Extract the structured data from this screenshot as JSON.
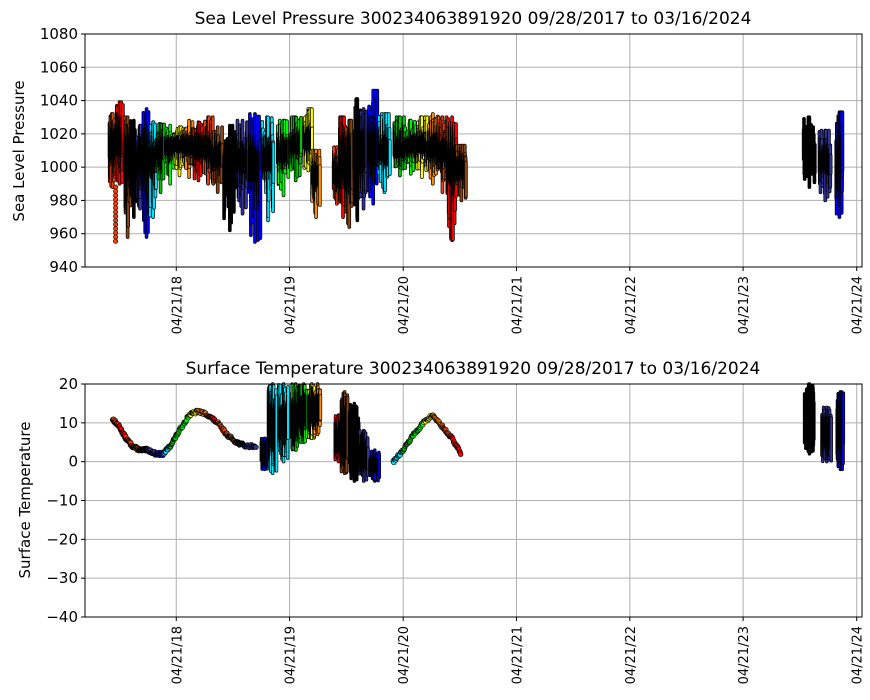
{
  "figure": {
    "background": "#ffffff",
    "grid_color": "#b0b0b0"
  },
  "chart_data": [
    {
      "type": "scatter",
      "title": "Sea Level Pressure 300234063891920  09/28/2017 to 03/16/2024",
      "xlabel": "",
      "ylabel": "Sea Level Pressure",
      "xlim": [
        "2017-07-01",
        "2024-05-08"
      ],
      "ylim": [
        940,
        1080
      ],
      "yticks": [
        940,
        960,
        980,
        1000,
        1020,
        1040,
        1060,
        1080
      ],
      "xticks": [
        "2018-04-21",
        "2019-04-21",
        "2020-04-21",
        "2021-04-21",
        "2022-04-21",
        "2023-04-21",
        "2024-04-21"
      ],
      "xtick_labels": [
        "04/21/18",
        "04/21/19",
        "04/21/20",
        "04/21/21",
        "04/21/22",
        "04/21/23",
        "04/21/24"
      ],
      "grid": true,
      "marker_edge_color": "#000000",
      "color_cycle": [
        "#e8420c",
        "#8b4513",
        "#000000",
        "#333399",
        "#0000ff",
        "#00e5ff",
        "#00c800",
        "#ffff00",
        "#ff8c00",
        "#ff0000"
      ],
      "segments": [
        {
          "x": "2017-09-28",
          "y_min": 988,
          "y_max": 1032,
          "y_mid": 1012,
          "extra_low": 955,
          "color": "#e8420c"
        },
        {
          "x": "2017-10-20",
          "y_min": 990,
          "y_max": 1039,
          "y_mid": 1015,
          "color": "#ff0000"
        },
        {
          "x": "2017-11-15",
          "y_min": 958,
          "y_max": 1030,
          "y_mid": 1008,
          "color": "#8b4513"
        },
        {
          "x": "2017-12-05",
          "y_min": 970,
          "y_max": 1028,
          "y_mid": 1002,
          "color": "#000000"
        },
        {
          "x": "2017-12-25",
          "y_min": 975,
          "y_max": 1025,
          "y_mid": 1004,
          "color": "#333399"
        },
        {
          "x": "2018-01-15",
          "y_min": 958,
          "y_max": 1035,
          "y_mid": 1005,
          "color": "#0000ff"
        },
        {
          "x": "2018-02-05",
          "y_min": 970,
          "y_max": 1027,
          "y_mid": 1003,
          "color": "#00e5ff"
        },
        {
          "x": "2018-03-01",
          "y_min": 985,
          "y_max": 1026,
          "y_mid": 1010,
          "color": "#00c800"
        },
        {
          "x": "2018-04-01",
          "y_min": 990,
          "y_max": 1025,
          "y_mid": 1012,
          "color": "#00ff00"
        },
        {
          "x": "2018-05-01",
          "y_min": 995,
          "y_max": 1024,
          "y_mid": 1013,
          "color": "#ffff00"
        },
        {
          "x": "2018-06-01",
          "y_min": 994,
          "y_max": 1028,
          "y_mid": 1012,
          "color": "#ff8c00"
        },
        {
          "x": "2018-07-01",
          "y_min": 992,
          "y_max": 1027,
          "y_mid": 1011,
          "color": "#ff0000"
        },
        {
          "x": "2018-08-01",
          "y_min": 990,
          "y_max": 1030,
          "y_mid": 1010,
          "color": "#e8420c"
        },
        {
          "x": "2018-09-01",
          "y_min": 985,
          "y_max": 1024,
          "y_mid": 1005,
          "color": "#8b4513"
        },
        {
          "x": "2018-10-10",
          "y_min": 962,
          "y_max": 1025,
          "y_mid": 1000,
          "color": "#000000"
        },
        {
          "x": "2018-11-20",
          "y_min": 972,
          "y_max": 1028,
          "y_mid": 1003,
          "color": "#333399"
        },
        {
          "x": "2018-12-30",
          "y_min": 955,
          "y_max": 1032,
          "y_mid": 1000,
          "color": "#0000ff"
        },
        {
          "x": "2019-02-10",
          "y_min": 968,
          "y_max": 1030,
          "y_mid": 1005,
          "color": "#00e5ff"
        },
        {
          "x": "2019-04-01",
          "y_min": 983,
          "y_max": 1028,
          "y_mid": 1008,
          "color": "#00ff00"
        },
        {
          "x": "2019-05-10",
          "y_min": 992,
          "y_max": 1030,
          "y_mid": 1012,
          "color": "#00c800"
        },
        {
          "x": "2019-06-20",
          "y_min": 998,
          "y_max": 1035,
          "y_mid": 1015,
          "color": "#ffff00"
        },
        {
          "x": "2019-07-15",
          "y_min": 970,
          "y_max": 1010,
          "y_mid": 995,
          "color": "#ff8c00"
        },
        {
          "x": "2019-09-20",
          "y_min": 978,
          "y_max": 1012,
          "y_mid": 995,
          "color": "#e8420c"
        },
        {
          "x": "2019-10-10",
          "y_min": 970,
          "y_max": 1030,
          "y_mid": 1002,
          "color": "#ff0000"
        },
        {
          "x": "2019-10-30",
          "y_min": 964,
          "y_max": 1028,
          "y_mid": 1000,
          "color": "#8b4513"
        },
        {
          "x": "2019-11-25",
          "y_min": 968,
          "y_max": 1041,
          "y_mid": 1005,
          "color": "#000000"
        },
        {
          "x": "2019-12-15",
          "y_min": 975,
          "y_max": 1035,
          "y_mid": 1008,
          "color": "#333399"
        },
        {
          "x": "2020-01-15",
          "y_min": 978,
          "y_max": 1046,
          "y_mid": 1010,
          "color": "#0000ff"
        },
        {
          "x": "2020-02-20",
          "y_min": 985,
          "y_max": 1032,
          "y_mid": 1008,
          "color": "#00e5ff"
        },
        {
          "x": "2020-04-10",
          "y_min": 995,
          "y_max": 1030,
          "y_mid": 1010,
          "color": "#00c800"
        },
        {
          "x": "2020-05-15",
          "y_min": 996,
          "y_max": 1028,
          "y_mid": 1012,
          "color": "#00ff00"
        },
        {
          "x": "2020-06-20",
          "y_min": 994,
          "y_max": 1030,
          "y_mid": 1012,
          "color": "#ffff00"
        },
        {
          "x": "2020-07-25",
          "y_min": 990,
          "y_max": 1032,
          "y_mid": 1010,
          "color": "#ff8c00"
        },
        {
          "x": "2020-08-25",
          "y_min": 985,
          "y_max": 1030,
          "y_mid": 1008,
          "color": "#e8420c"
        },
        {
          "x": "2020-09-25",
          "y_min": 956,
          "y_max": 1030,
          "y_mid": 1000,
          "color": "#ff0000"
        },
        {
          "x": "2020-10-25",
          "y_min": 980,
          "y_max": 1013,
          "y_mid": 1000,
          "color": "#8b4513"
        },
        {
          "x": "2023-11-20",
          "y_min": 988,
          "y_max": 1030,
          "y_mid": 1008,
          "color": "#000000"
        },
        {
          "x": "2024-01-10",
          "y_min": 980,
          "y_max": 1022,
          "y_mid": 1002,
          "color": "#333399"
        },
        {
          "x": "2024-02-25",
          "y_min": 970,
          "y_max": 1033,
          "y_mid": 1003,
          "color": "#0000ff"
        }
      ]
    },
    {
      "type": "scatter",
      "title": "Surface Temperature 300234063891920  09/28/2017 to 03/16/2024",
      "xlabel": "",
      "ylabel": "Surface Temperature",
      "xlim": [
        "2017-07-01",
        "2024-05-08"
      ],
      "ylim": [
        -40,
        20
      ],
      "yticks": [
        -40,
        -30,
        -20,
        -10,
        0,
        10,
        20
      ],
      "xticks": [
        "2018-04-21",
        "2019-04-21",
        "2020-04-21",
        "2021-04-21",
        "2022-04-21",
        "2023-04-21",
        "2024-04-21"
      ],
      "xtick_labels": [
        "04/21/18",
        "04/21/19",
        "04/21/20",
        "04/21/21",
        "04/21/22",
        "04/21/23",
        "04/21/24"
      ],
      "grid": true,
      "marker_edge_color": "#000000",
      "trace": [
        {
          "x": "2017-09-28",
          "y": 11,
          "color": "#e8420c"
        },
        {
          "x": "2017-10-20",
          "y": 9,
          "color": "#ff0000"
        },
        {
          "x": "2017-11-10",
          "y": 6,
          "color": "#e8420c"
        },
        {
          "x": "2017-12-01",
          "y": 4,
          "color": "#8b4513"
        },
        {
          "x": "2017-12-25",
          "y": 3,
          "color": "#000000"
        },
        {
          "x": "2018-01-20",
          "y": 3,
          "color": "#333399"
        },
        {
          "x": "2018-02-15",
          "y": 2,
          "color": "#0000ff"
        },
        {
          "x": "2018-03-10",
          "y": 2,
          "color": "#00e5ff"
        },
        {
          "x": "2018-04-01",
          "y": 4,
          "color": "#00c800"
        },
        {
          "x": "2018-05-01",
          "y": 8,
          "color": "#00ff00"
        },
        {
          "x": "2018-06-01",
          "y": 12,
          "color": "#ffff00"
        },
        {
          "x": "2018-07-01",
          "y": 13,
          "color": "#ff8c00"
        },
        {
          "x": "2018-08-01",
          "y": 12,
          "color": "#ff0000"
        },
        {
          "x": "2018-09-01",
          "y": 10,
          "color": "#e8420c"
        },
        {
          "x": "2018-10-01",
          "y": 7,
          "color": "#8b4513"
        },
        {
          "x": "2018-11-01",
          "y": 5,
          "color": "#000000"
        },
        {
          "x": "2018-12-01",
          "y": 4,
          "color": "#333399"
        },
        {
          "x": "2019-01-05",
          "y": 4,
          "color": "#0000ff"
        },
        {
          "x": "2020-03-20",
          "y": 0,
          "color": "#00e5ff"
        },
        {
          "x": "2020-04-21",
          "y": 3,
          "color": "#00c800"
        },
        {
          "x": "2020-05-25",
          "y": 7,
          "color": "#00ff00"
        },
        {
          "x": "2020-06-25",
          "y": 10,
          "color": "#ffff00"
        },
        {
          "x": "2020-07-25",
          "y": 12,
          "color": "#ff8c00"
        },
        {
          "x": "2020-08-25",
          "y": 9,
          "color": "#e8420c"
        },
        {
          "x": "2020-09-25",
          "y": 6,
          "color": "#ff0000"
        },
        {
          "x": "2020-10-25",
          "y": 2,
          "color": "#8b4513"
        }
      ],
      "bands": [
        {
          "x": "2019-01-30",
          "y_min": -2,
          "y_max": 6,
          "color": "#0000ff"
        },
        {
          "x": "2019-02-25",
          "y_min": -3,
          "y_max": 20,
          "color": "#00e5ff"
        },
        {
          "x": "2019-04-01",
          "y_min": 0,
          "y_max": 20,
          "color": "#00e5ff"
        },
        {
          "x": "2019-05-10",
          "y_min": 3,
          "y_max": 20,
          "color": "#00c800"
        },
        {
          "x": "2019-06-05",
          "y_min": 5,
          "y_max": 20,
          "color": "#00ff00"
        },
        {
          "x": "2019-07-01",
          "y_min": 6,
          "y_max": 20,
          "color": "#ffff00"
        },
        {
          "x": "2019-07-20",
          "y_min": 7,
          "y_max": 20,
          "color": "#ff8c00"
        },
        {
          "x": "2019-09-25",
          "y_min": 0,
          "y_max": 12,
          "color": "#ff0000"
        },
        {
          "x": "2019-10-15",
          "y_min": -3,
          "y_max": 18,
          "color": "#8b4513"
        },
        {
          "x": "2019-11-15",
          "y_min": -5,
          "y_max": 15,
          "color": "#000000"
        },
        {
          "x": "2019-12-15",
          "y_min": -5,
          "y_max": 8,
          "color": "#333399"
        },
        {
          "x": "2020-01-20",
          "y_min": -5,
          "y_max": 3,
          "color": "#0000ff"
        },
        {
          "x": "2023-11-20",
          "y_min": 2,
          "y_max": 20,
          "color": "#000000"
        },
        {
          "x": "2024-01-15",
          "y_min": 0,
          "y_max": 14,
          "color": "#333399"
        },
        {
          "x": "2024-02-28",
          "y_min": -2,
          "y_max": 18,
          "color": "#0000ff"
        }
      ]
    }
  ]
}
